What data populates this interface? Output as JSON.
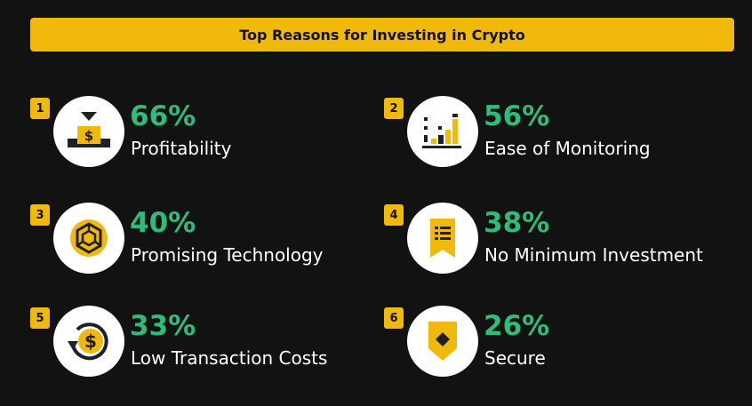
{
  "title": "Top Reasons for Investing in Crypto",
  "colors": {
    "accent": "#F0B90B",
    "green": "#2DBD7A",
    "background": "#121212",
    "icon_dark": "#1E2026"
  },
  "reasons": [
    {
      "rank": "1",
      "percent": "66%",
      "label": "Profitability",
      "icon": "money-box-icon"
    },
    {
      "rank": "2",
      "percent": "56%",
      "label": "Ease of Monitoring",
      "icon": "bar-chart-icon"
    },
    {
      "rank": "3",
      "percent": "40%",
      "label": "Promising Technology",
      "icon": "blockchain-cube-icon"
    },
    {
      "rank": "4",
      "percent": "38%",
      "label": "No Minimum Investment",
      "icon": "receipt-icon"
    },
    {
      "rank": "5",
      "percent": "33%",
      "label": "Low Transaction Costs",
      "icon": "dollar-cycle-icon"
    },
    {
      "rank": "6",
      "percent": "26%",
      "label": "Secure",
      "icon": "shield-icon"
    }
  ]
}
